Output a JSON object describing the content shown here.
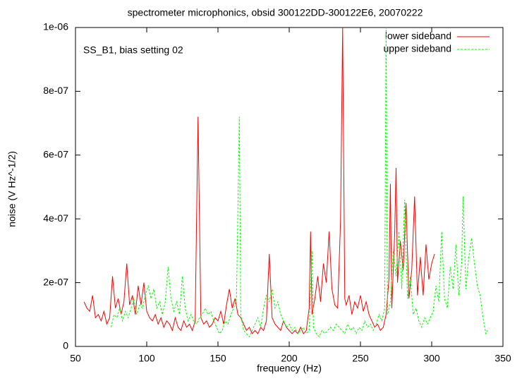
{
  "chart_data": {
    "type": "line",
    "title": "spectrometer microphonics, obsid 300122DD-300122E6, 20070222",
    "xlabel": "frequency (Hz)",
    "ylabel": "noise (V Hz^-1/2)",
    "annotation": "SS_B1, bias setting 02",
    "legend": "upper right",
    "xlim": [
      50,
      350
    ],
    "ylim": [
      0,
      1e-06
    ],
    "xticks": [
      50,
      100,
      150,
      200,
      250,
      300,
      350
    ],
    "yticks": [
      0,
      {
        "value": 2e-07,
        "label": "2e-07"
      },
      {
        "value": 4e-07,
        "label": "4e-07"
      },
      {
        "value": 6e-07,
        "label": "6e-07"
      },
      {
        "value": 8e-07,
        "label": "8e-07"
      },
      {
        "value": 1e-06,
        "label": "1e-06"
      }
    ],
    "series": [
      {
        "name": "lower sideband",
        "color": "#ff0000",
        "dash": false,
        "x": [
          56,
          58,
          60,
          62,
          64,
          66,
          68,
          70,
          72,
          74,
          76,
          78,
          80,
          82,
          84,
          86,
          88,
          90,
          92,
          94,
          96,
          98,
          100,
          102,
          104,
          106,
          108,
          110,
          112,
          114,
          116,
          118,
          120,
          122,
          124,
          126,
          128,
          130,
          132,
          134,
          136,
          138,
          140,
          142,
          144,
          146,
          148,
          150,
          152,
          154,
          156,
          158,
          160,
          162,
          164,
          166,
          168,
          170,
          172,
          174,
          176,
          178,
          180,
          182,
          184,
          186,
          188,
          190,
          192,
          194,
          196,
          198,
          200,
          202,
          204,
          206,
          208,
          210,
          212,
          214,
          215,
          216,
          218,
          220,
          222,
          224,
          226,
          228,
          230,
          232,
          234,
          236,
          237.5,
          239,
          240,
          242,
          244,
          246,
          248,
          250,
          252,
          254,
          256,
          258,
          260,
          262,
          264,
          266,
          268,
          270,
          271,
          272,
          274,
          275,
          276,
          278,
          280,
          282,
          284,
          286,
          288,
          290,
          292,
          294,
          296,
          298,
          300,
          302
        ],
        "values": [
          1.4e-07,
          1.2e-07,
          1.1e-07,
          1.6e-07,
          9e-08,
          1e-07,
          8e-08,
          1.1e-07,
          7e-08,
          9e-08,
          2.2e-07,
          1.2e-07,
          1.5e-07,
          1e-07,
          1.4e-07,
          2.6e-07,
          1.3e-07,
          1.6e-07,
          1e-07,
          1.9e-07,
          1.3e-07,
          2e-07,
          1.1e-07,
          9e-08,
          8e-08,
          1e-07,
          7e-08,
          9e-08,
          6e-08,
          8e-08,
          7e-08,
          5e-08,
          9e-08,
          6e-08,
          5e-08,
          8e-08,
          6e-08,
          7e-08,
          5e-08,
          8e-08,
          7.2e-07,
          9e-08,
          7e-08,
          8e-08,
          6e-08,
          7e-08,
          9e-08,
          8e-08,
          1.1e-07,
          7e-08,
          1.3e-07,
          1.8e-07,
          1.2e-07,
          1.5e-07,
          1e-07,
          9e-08,
          7e-08,
          5e-08,
          6e-08,
          4e-08,
          5e-08,
          4e-08,
          6e-08,
          5e-08,
          8e-08,
          2.9e-07,
          9e-08,
          7e-08,
          6e-08,
          5e-08,
          8e-08,
          6e-08,
          5e-08,
          4e-08,
          5e-08,
          4e-08,
          6e-08,
          4e-08,
          5e-08,
          1.2e-07,
          3.6e-07,
          1e-07,
          1.5e-07,
          2.2e-07,
          1.4e-07,
          2.6e-07,
          2e-07,
          3.6e-07,
          1.8e-07,
          1.3e-07,
          1.2e-07,
          3.9e-07,
          1e-06,
          1.5e-07,
          1.3e-07,
          1.6e-07,
          1e-07,
          1.4e-07,
          1.2e-07,
          1.6e-07,
          1.1e-07,
          1.4e-07,
          1e-07,
          8e-08,
          6e-08,
          7e-08,
          5e-08,
          6e-08,
          1e-07,
          2.1e-07,
          5.1e-07,
          1.2e-07,
          3.5e-07,
          5.6e-07,
          2e-07,
          3.3e-07,
          2.4e-07,
          4.5e-07,
          1.5e-07,
          2.4e-07,
          4.7e-07,
          1.6e-07,
          2.8e-07,
          1.6e-07,
          3.2e-07,
          2.1e-07,
          2.6e-07,
          2.9e-07
        ]
      },
      {
        "name": "upper sideband",
        "color": "#00ff00",
        "dash": true,
        "x": [
          75,
          77,
          79,
          81,
          83,
          85,
          87,
          89,
          91,
          93,
          95,
          97,
          99,
          101,
          103,
          105,
          107,
          109,
          111,
          113,
          115,
          117,
          119,
          121,
          123,
          125,
          127,
          129,
          131,
          133,
          135,
          137,
          139,
          141,
          143,
          145,
          147,
          149,
          151,
          153,
          155,
          157,
          159,
          161,
          163,
          165,
          166,
          168,
          170,
          172,
          174,
          176,
          178,
          180,
          182,
          184,
          186,
          188,
          190,
          192,
          194,
          196,
          198,
          200,
          202,
          204,
          206,
          208,
          210,
          212,
          214,
          216,
          217,
          219,
          221,
          223,
          225,
          227,
          229,
          231,
          233,
          235,
          237,
          239,
          241,
          243,
          245,
          247,
          249,
          251,
          253,
          255,
          257,
          259,
          261,
          263,
          265,
          267,
          268,
          269,
          271,
          273,
          275,
          277,
          279,
          281,
          283,
          285,
          287,
          289,
          291,
          293,
          295,
          297,
          299,
          301,
          303,
          305,
          307,
          309,
          311,
          313,
          315,
          317,
          319,
          321,
          322,
          324,
          326,
          328,
          330,
          332,
          334,
          336,
          338,
          339
        ],
        "values": [
          6e-08,
          1e-07,
          9e-08,
          1.2e-07,
          8e-08,
          1.1e-07,
          9e-08,
          1.2e-07,
          1.5e-07,
          1e-07,
          1.3e-07,
          1.2e-07,
          1.6e-07,
          1.9e-07,
          1.5e-07,
          1.8e-07,
          1.2e-07,
          1.4e-07,
          1e-07,
          1.4e-07,
          2.5e-07,
          1.5e-07,
          1.1e-07,
          1.4e-07,
          1e-07,
          2.2e-07,
          1.2e-07,
          8e-08,
          1e-07,
          8e-08,
          7e-08,
          9e-08,
          1e-07,
          1.2e-07,
          1e-07,
          1.1e-07,
          8e-08,
          6e-08,
          4e-08,
          5e-08,
          8e-08,
          7e-08,
          1e-07,
          1.2e-07,
          1.5e-07,
          7.2e-07,
          1e-07,
          5e-08,
          4e-08,
          3e-08,
          5e-08,
          7e-08,
          9e-08,
          6e-08,
          1.2e-07,
          1.6e-07,
          1.4e-07,
          1.8e-07,
          1.2e-07,
          1.4e-07,
          1e-07,
          8e-08,
          6e-08,
          7e-08,
          5e-08,
          6e-08,
          4e-08,
          5e-08,
          6e-08,
          4e-08,
          5e-08,
          3e-07,
          6e-08,
          4e-08,
          3e-08,
          5e-08,
          4e-08,
          5e-08,
          6e-08,
          5e-08,
          7e-08,
          6e-08,
          5e-08,
          4e-08,
          7e-08,
          5e-08,
          6e-08,
          4e-08,
          6e-08,
          5e-08,
          8e-08,
          6e-08,
          7e-08,
          5e-08,
          7e-08,
          1e-07,
          8e-08,
          1.2e-07,
          1e-06,
          1e-07,
          1.4e-07,
          3e-07,
          2.2e-07,
          3.6e-07,
          1.8e-07,
          4.6e-07,
          1.5e-07,
          2.2e-07,
          1e-07,
          1.2e-07,
          8e-08,
          6e-08,
          9e-08,
          7e-08,
          9e-08,
          1.1e-07,
          1.9e-07,
          1.4e-07,
          3.6e-07,
          1.5e-07,
          1.2e-07,
          2.5e-07,
          1.8e-07,
          3.2e-07,
          1.6e-07,
          2.6e-07,
          4.7e-07,
          1.8e-07,
          2.8e-07,
          3.4e-07,
          2.6e-07,
          1.9e-07,
          1.6e-07,
          9e-08,
          4e-08,
          5e-08
        ]
      }
    ]
  }
}
